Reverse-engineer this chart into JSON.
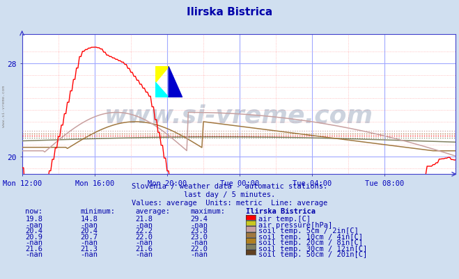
{
  "title": "Ilirska Bistrica",
  "bg_color": "#d0dff0",
  "plot_bg_color": "#ffffff",
  "subtitle1": "Slovenia / weather data - automatic stations.",
  "subtitle2": "last day / 5 minutes.",
  "subtitle3": "Values: average  Units: metric  Line: average",
  "xticklabels": [
    "Mon 12:00",
    "Mon 16:00",
    "Mon 20:00",
    "Tue 00:00",
    "Tue 04:00",
    "Tue 08:00"
  ],
  "yticks": [
    20,
    28
  ],
  "ylim": [
    18.5,
    30.5
  ],
  "xlim": [
    0,
    287
  ],
  "xtick_positions": [
    0,
    48,
    96,
    144,
    192,
    240
  ],
  "avg_air": 21.8,
  "avg_soil5": 22.2,
  "avg_soil10": 22.0,
  "avg_soil30": 21.6,
  "color_air": "#ff0000",
  "color_soil5": "#c8a0a0",
  "color_soil10": "#a07840",
  "color_soil30": "#808060",
  "watermark": "www.si-vreme.com",
  "watermark_color": "#1a3a6a",
  "left_label": "www.si-vreme.com",
  "table_header": [
    "now:",
    "minimum:",
    "average:",
    "maximum:",
    "Ilirska Bistrica"
  ],
  "table_rows": [
    [
      "19.8",
      "14.8",
      "21.8",
      "29.4",
      "#ff0000",
      "air temp.[C]"
    ],
    [
      "-nan",
      "-nan",
      "-nan",
      "-nan",
      "#c8c820",
      "air pressure[hPa]"
    ],
    [
      "20.4",
      "20.4",
      "22.2",
      "23.8",
      "#c8a0a0",
      "soil temp. 5cm / 2in[C]"
    ],
    [
      "20.9",
      "20.7",
      "22.0",
      "23.0",
      "#a07840",
      "soil temp. 10cm / 4in[C]"
    ],
    [
      "-nan",
      "-nan",
      "-nan",
      "-nan",
      "#b08020",
      "soil temp. 20cm / 8in[C]"
    ],
    [
      "21.6",
      "21.3",
      "21.6",
      "22.0",
      "#808060",
      "soil temp. 30cm / 12in[C]"
    ],
    [
      "-nan",
      "-nan",
      "-nan",
      "-nan",
      "#604020",
      "soil temp. 50cm / 20in[C]"
    ]
  ]
}
